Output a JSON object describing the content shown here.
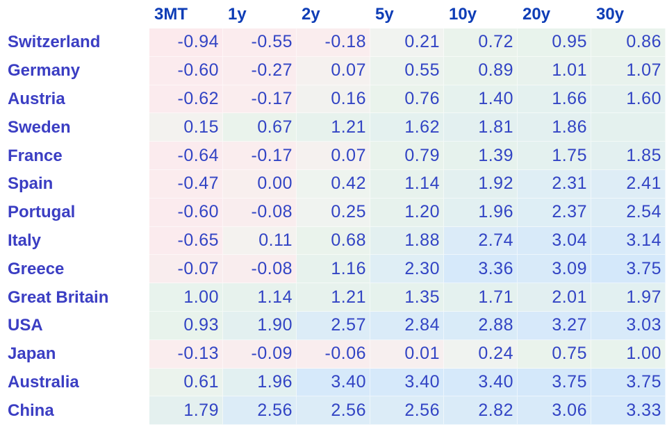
{
  "chart_data": {
    "type": "heatmap",
    "title": "",
    "columns": [
      "3MT",
      "1y",
      "2y",
      "5y",
      "10y",
      "20y",
      "30y"
    ],
    "rows": [
      {
        "country": "Switzerland",
        "values": [
          "-0.94",
          "-0.55",
          "-0.18",
          "0.21",
          "0.72",
          "0.95",
          "0.86"
        ]
      },
      {
        "country": "Germany",
        "values": [
          "-0.60",
          "-0.27",
          "0.07",
          "0.55",
          "0.89",
          "1.01",
          "1.07"
        ]
      },
      {
        "country": "Austria",
        "values": [
          "-0.62",
          "-0.17",
          "0.16",
          "0.76",
          "1.40",
          "1.66",
          "1.60"
        ]
      },
      {
        "country": "Sweden",
        "values": [
          "0.15",
          "0.67",
          "1.21",
          "1.62",
          "1.81",
          "1.86",
          ""
        ]
      },
      {
        "country": "France",
        "values": [
          "-0.64",
          "-0.17",
          "0.07",
          "0.79",
          "1.39",
          "1.75",
          "1.85"
        ]
      },
      {
        "country": "Spain",
        "values": [
          "-0.47",
          "0.00",
          "0.42",
          "1.14",
          "1.92",
          "2.31",
          "2.41"
        ]
      },
      {
        "country": "Portugal",
        "values": [
          "-0.60",
          "-0.08",
          "0.25",
          "1.20",
          "1.96",
          "2.37",
          "2.54"
        ]
      },
      {
        "country": "Italy",
        "values": [
          "-0.65",
          "0.11",
          "0.68",
          "1.88",
          "2.74",
          "3.04",
          "3.14"
        ]
      },
      {
        "country": "Greece",
        "values": [
          "-0.07",
          "-0.08",
          "1.16",
          "2.30",
          "3.36",
          "3.09",
          "3.75"
        ]
      },
      {
        "country": "Great Britain",
        "values": [
          "1.00",
          "1.14",
          "1.21",
          "1.35",
          "1.71",
          "2.01",
          "1.97"
        ]
      },
      {
        "country": "USA",
        "values": [
          "0.93",
          "1.90",
          "2.57",
          "2.84",
          "2.88",
          "3.27",
          "3.03"
        ]
      },
      {
        "country": "Japan",
        "values": [
          "-0.13",
          "-0.09",
          "-0.06",
          "0.01",
          "0.24",
          "0.75",
          "1.00"
        ]
      },
      {
        "country": "Australia",
        "values": [
          "0.61",
          "1.96",
          "3.40",
          "3.40",
          "3.40",
          "3.75",
          "3.75"
        ]
      },
      {
        "country": "China",
        "values": [
          "1.79",
          "2.56",
          "2.56",
          "2.56",
          "2.82",
          "3.06",
          "3.33"
        ]
      }
    ]
  },
  "colors": {
    "header_text": "#0e3db6",
    "country_text": "#3b3ec3",
    "number_text": "#3244c4",
    "empty_cell": "#e4f1ee",
    "heat_stops": [
      [
        -1.0,
        "#fceaed"
      ],
      [
        -0.4,
        "#fbecee"
      ],
      [
        -0.03,
        "#f9edee"
      ],
      [
        0.05,
        "#f5f1ef"
      ],
      [
        0.3,
        "#eff4f0"
      ],
      [
        0.7,
        "#eaf3ec"
      ],
      [
        1.3,
        "#e6f2ed"
      ],
      [
        1.9,
        "#e3f0f0"
      ],
      [
        2.3,
        "#dfeef5"
      ],
      [
        2.8,
        "#daebf8"
      ],
      [
        3.4,
        "#d6e9fa"
      ],
      [
        3.8,
        "#d4e8fa"
      ]
    ]
  }
}
